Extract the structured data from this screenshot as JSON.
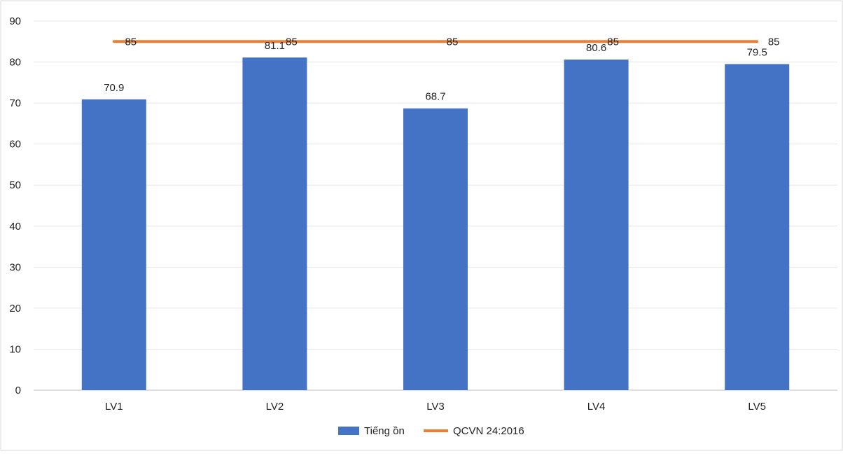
{
  "chart_data": {
    "type": "bar",
    "categories": [
      "LV1",
      "LV2",
      "LV3",
      "LV4",
      "LV5"
    ],
    "series": [
      {
        "name": "Tiếng ồn",
        "type": "bar",
        "values": [
          70.9,
          81.1,
          68.7,
          80.6,
          79.5
        ],
        "color": "#4472C4"
      },
      {
        "name": "QCVN 24:2016",
        "type": "line",
        "values": [
          85,
          85,
          85,
          85,
          85
        ],
        "color": "#ED7D31"
      }
    ],
    "y_ticks": [
      "0",
      "10",
      "20",
      "30",
      "40",
      "50",
      "60",
      "70",
      "80",
      "90"
    ],
    "ylim": [
      0,
      90
    ],
    "grid": true,
    "legend_position": "bottom"
  }
}
